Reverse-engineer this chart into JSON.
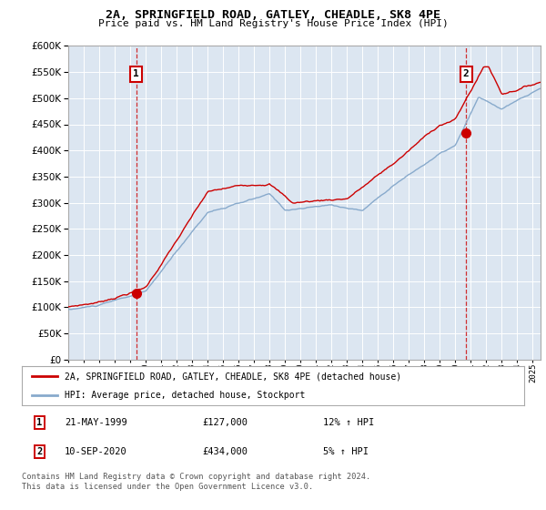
{
  "title": "2A, SPRINGFIELD ROAD, GATLEY, CHEADLE, SK8 4PE",
  "subtitle": "Price paid vs. HM Land Registry's House Price Index (HPI)",
  "ylim": [
    0,
    600000
  ],
  "yticks": [
    0,
    50000,
    100000,
    150000,
    200000,
    250000,
    300000,
    350000,
    400000,
    450000,
    500000,
    550000,
    600000
  ],
  "xlim_start": 1995.0,
  "xlim_end": 2025.5,
  "plot_bg_color": "#dce6f1",
  "sale1_date": 1999.385,
  "sale1_price": 127000,
  "sale2_date": 2020.69,
  "sale2_price": 434000,
  "legend_line1": "2A, SPRINGFIELD ROAD, GATLEY, CHEADLE, SK8 4PE (detached house)",
  "legend_line2": "HPI: Average price, detached house, Stockport",
  "ann1_date": "21-MAY-1999",
  "ann1_price": "£127,000",
  "ann1_hpi": "12% ↑ HPI",
  "ann2_date": "10-SEP-2020",
  "ann2_price": "£434,000",
  "ann2_hpi": "5% ↑ HPI",
  "footer": "Contains HM Land Registry data © Crown copyright and database right 2024.\nThis data is licensed under the Open Government Licence v3.0.",
  "line_color_red": "#cc0000",
  "line_color_blue": "#88aacc",
  "dashed_color": "#cc0000"
}
